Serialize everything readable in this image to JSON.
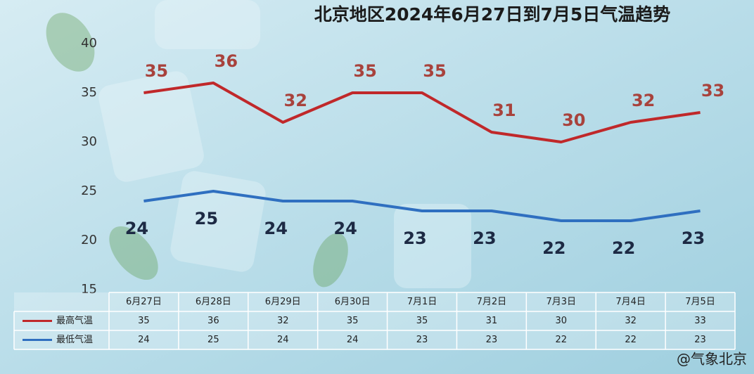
{
  "chart_data": {
    "type": "line",
    "title": "北京地区2024年6月27日到7月5日气温趋势",
    "categories": [
      "6月27日",
      "6月28日",
      "6月29日",
      "6月30日",
      "7月1日",
      "7月2日",
      "7月3日",
      "7月4日",
      "7月5日"
    ],
    "series": [
      {
        "name": "最高气温",
        "color": "#c0282a",
        "label_color": "#a8423c",
        "values": [
          35,
          36,
          32,
          35,
          35,
          31,
          30,
          32,
          33
        ]
      },
      {
        "name": "最低气温",
        "color": "#2f6fc0",
        "label_color": "#1d2a44",
        "values": [
          24,
          25,
          24,
          24,
          23,
          23,
          22,
          22,
          23
        ]
      }
    ],
    "ylim": [
      15,
      40
    ],
    "yticks": [
      15,
      20,
      25,
      30,
      35,
      40
    ],
    "grid": false,
    "watermark": "@气象北京"
  }
}
